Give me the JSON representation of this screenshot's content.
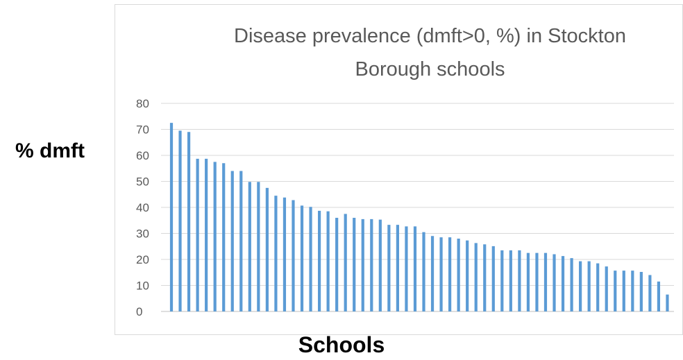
{
  "chart_data": {
    "type": "bar",
    "title": "Disease prevalence (dmft>0, %) in Stockton Borough schools",
    "title_lines": [
      "Disease prevalence (dmft>0, %) in Stockton",
      "Borough schools"
    ],
    "xlabel": "Schools",
    "ylabel": "% dmft",
    "ylim": [
      0,
      80
    ],
    "yticks": [
      0,
      10,
      20,
      30,
      40,
      50,
      60,
      70,
      80
    ],
    "grid": true,
    "legend": "none",
    "bar_color": "#5b9bd5",
    "values": [
      72.5,
      69.5,
      69,
      58.7,
      58.7,
      57.5,
      57,
      54,
      54,
      49.8,
      49.8,
      47.5,
      44.5,
      43.8,
      42.8,
      40.7,
      40.2,
      38.7,
      38.5,
      36,
      37.5,
      36,
      35.5,
      35.5,
      35.3,
      33.3,
      33.3,
      32.7,
      32.7,
      30.5,
      29,
      28.5,
      28.5,
      28,
      27.3,
      26.3,
      25.8,
      25.1,
      23.5,
      23.5,
      23.5,
      22.5,
      22.5,
      22.5,
      22,
      21.3,
      20.5,
      19.3,
      19.3,
      18.5,
      17.3,
      15.7,
      15.7,
      15.7,
      15.2,
      14,
      11.5,
      6.5
    ]
  }
}
